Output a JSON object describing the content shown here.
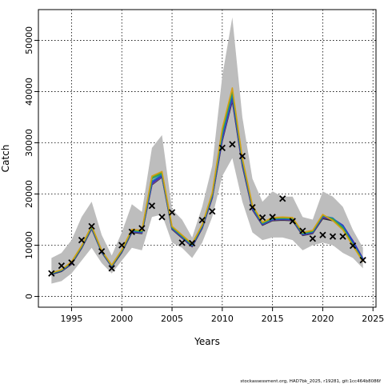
{
  "chart_data": {
    "type": "line",
    "xlabel": "Years",
    "ylabel": "Catch",
    "xlim": [
      1991.7,
      2025.3
    ],
    "ylim": [
      -2100,
      56000
    ],
    "xticks": [
      1995,
      2000,
      2005,
      2010,
      2015,
      2020,
      2025
    ],
    "yticks": [
      0,
      10000,
      20000,
      30000,
      40000,
      50000
    ],
    "x_tick_labels": [
      "1995",
      "2000",
      "2005",
      "2010",
      "2015",
      "2020",
      "2025"
    ],
    "y_tick_labels": [
      "0",
      "10000",
      "20000",
      "30000",
      "40000",
      "50000"
    ],
    "grid": true,
    "credit": "stockassessment.org, HAD7bk_2025, r19281, git:1cc464b8086f",
    "uncertainty_band": {
      "x": [
        1993,
        1994,
        1995,
        1996,
        1997,
        1998,
        1999,
        2000,
        2001,
        2002,
        2003,
        2004,
        2005,
        2006,
        2007,
        2008,
        2009,
        2010,
        2011,
        2012,
        2013,
        2014,
        2015,
        2016,
        2017,
        2018,
        2019,
        2020,
        2021,
        2022,
        2023,
        2024
      ],
      "lower": [
        2500,
        3000,
        4500,
        7000,
        9500,
        6500,
        4500,
        7000,
        9500,
        9000,
        15500,
        16000,
        10500,
        9500,
        7500,
        10500,
        15500,
        23500,
        27000,
        18500,
        12500,
        11000,
        11500,
        11500,
        11000,
        9000,
        10000,
        10500,
        10000,
        8500,
        7500,
        5500
      ],
      "upper": [
        7500,
        8500,
        11000,
        15500,
        18500,
        12000,
        8000,
        12500,
        18000,
        16500,
        29000,
        31500,
        17000,
        15000,
        11500,
        17500,
        25500,
        43000,
        54500,
        35000,
        23000,
        18500,
        20500,
        19500,
        19500,
        15500,
        15000,
        20500,
        19500,
        17500,
        13000,
        9500
      ],
      "color": "#bdbdbd"
    },
    "series": [
      {
        "color": "#2d2d2d",
        "values": [
          4300,
          4900,
          6300,
          9400,
          13200,
          8600,
          5800,
          8600,
          12500,
          12300,
          21800,
          23300,
          13100,
          11400,
          9700,
          13300,
          19200,
          30400,
          38200,
          25500,
          16900,
          13900,
          14800,
          14900,
          14800,
          11900,
          12300,
          15200,
          14800,
          13600,
          10700,
          7400
        ]
      },
      {
        "color": "#6a3d9a",
        "values": [
          4400,
          5000,
          6400,
          9500,
          13300,
          8700,
          5900,
          8700,
          12600,
          12400,
          21900,
          23400,
          13200,
          11500,
          9800,
          13400,
          19300,
          30600,
          38500,
          25700,
          17000,
          14000,
          14900,
          15000,
          14900,
          12000,
          12400,
          15400,
          15000,
          13800,
          10900,
          7400
        ]
      },
      {
        "color": "#2b35c9",
        "values": [
          4400,
          5000,
          6500,
          9600,
          13400,
          8700,
          5900,
          8800,
          12700,
          12500,
          22200,
          23600,
          13300,
          11600,
          9900,
          13500,
          19500,
          31000,
          39000,
          26000,
          17200,
          14100,
          15000,
          15100,
          15000,
          12100,
          12500,
          15600,
          15200,
          13900,
          10800,
          7300
        ]
      },
      {
        "color": "#1f78b4",
        "values": [
          4500,
          5100,
          6600,
          9700,
          13500,
          8800,
          6000,
          8900,
          12800,
          12600,
          22500,
          23800,
          13400,
          11700,
          10000,
          13700,
          19700,
          31500,
          39500,
          26300,
          17400,
          14200,
          15100,
          15200,
          15100,
          12200,
          12600,
          15700,
          15300,
          13600,
          10300,
          7100
        ]
      },
      {
        "color": "#1b9e77",
        "values": [
          4500,
          5100,
          6600,
          9700,
          13600,
          8900,
          6000,
          8900,
          12900,
          12700,
          23000,
          24000,
          13500,
          11800,
          10100,
          13800,
          19900,
          32000,
          40000,
          26600,
          17600,
          14300,
          15200,
          15300,
          15200,
          12300,
          12700,
          15800,
          15100,
          13400,
          10100,
          7000
        ]
      },
      {
        "color": "#66a61e",
        "values": [
          4600,
          5200,
          6700,
          9800,
          13700,
          8900,
          6100,
          9000,
          13000,
          12800,
          23300,
          24200,
          13600,
          11900,
          10200,
          13900,
          20000,
          32500,
          40400,
          26800,
          17700,
          14400,
          15300,
          15400,
          15300,
          12400,
          12800,
          15900,
          15000,
          13200,
          10000,
          6900
        ]
      },
      {
        "color": "#d4a017",
        "values": [
          4600,
          5200,
          6800,
          9900,
          13800,
          9000,
          6100,
          9100,
          13100,
          12900,
          23500,
          24400,
          13700,
          12000,
          10300,
          14000,
          20200,
          32800,
          40700,
          27000,
          17800,
          14500,
          15400,
          15500,
          15400,
          12500,
          12900,
          16000,
          14800,
          13000,
          9900,
          6800
        ]
      }
    ],
    "observations": {
      "x": [
        1993,
        1994,
        1995,
        1996,
        1997,
        1998,
        1999,
        2000,
        2001,
        2002,
        2003,
        2004,
        2005,
        2006,
        2007,
        2008,
        2009,
        2010,
        2011,
        2012,
        2013,
        2014,
        2015,
        2016,
        2017,
        2018,
        2019,
        2020,
        2021,
        2022,
        2023,
        2024
      ],
      "y": [
        4500,
        6000,
        6600,
        11000,
        13700,
        8800,
        5500,
        10000,
        12600,
        13300,
        17700,
        15500,
        16400,
        10500,
        10400,
        14900,
        16600,
        29000,
        29700,
        27400,
        17400,
        15400,
        15500,
        19100,
        14700,
        12800,
        11300,
        12000,
        11700,
        11700,
        9900,
        7100
      ]
    }
  }
}
